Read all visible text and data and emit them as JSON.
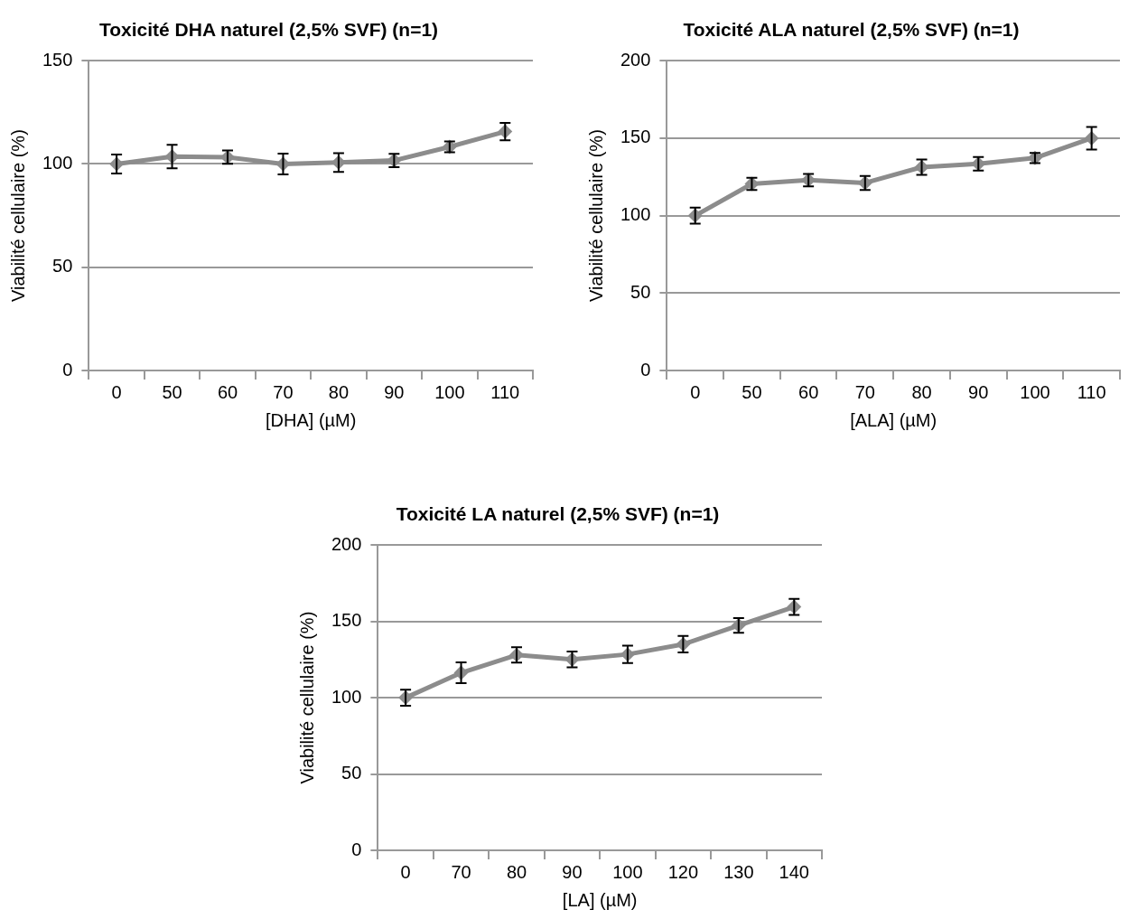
{
  "chart_data": [
    {
      "type": "line",
      "title": "Toxicité DHA naturel (2,5% SVF) (n=1)",
      "xlabel": "[DHA] (µM)",
      "ylabel": "Viabilité cellulaire (%)",
      "categories": [
        "0",
        "50",
        "60",
        "70",
        "80",
        "90",
        "100",
        "110"
      ],
      "color": "#8c8c8c",
      "marker": "diamond",
      "grid": "y",
      "values": [
        100,
        103.6,
        103.3,
        100,
        100.7,
        101.7,
        108.3,
        115.7
      ],
      "errors": [
        4.6,
        5.7,
        3.2,
        5,
        4.5,
        3.2,
        2.6,
        4.2
      ],
      "ylim": [
        0,
        150
      ],
      "yticks": [
        0,
        50,
        100,
        150
      ]
    },
    {
      "type": "line",
      "title": "Toxicité ALA naturel (2,5% SVF) (n=1)",
      "xlabel": "[ALA] (µM)",
      "ylabel": "Viabilité cellulaire (%)",
      "categories": [
        "0",
        "50",
        "60",
        "70",
        "80",
        "90",
        "100",
        "110"
      ],
      "color": "#8c8c8c",
      "marker": "diamond",
      "grid": "y",
      "values": [
        100,
        120.5,
        122.9,
        121.1,
        131.3,
        133.5,
        137.2,
        150
      ],
      "errors": [
        5.2,
        3.9,
        4,
        4.5,
        5,
        4.4,
        3.3,
        7.3
      ],
      "ylim": [
        0,
        200
      ],
      "yticks": [
        0,
        50,
        100,
        150,
        200
      ]
    },
    {
      "type": "line",
      "title": "Toxicité LA naturel (2,5% SVF) (n=1)",
      "xlabel": "[LA] (µM)",
      "ylabel": "Viabilité cellulaire (%)",
      "categories": [
        "0",
        "70",
        "80",
        "90",
        "100",
        "120",
        "130",
        "140"
      ],
      "color": "#8c8c8c",
      "marker": "diamond",
      "grid": "y",
      "values": [
        100,
        116.3,
        128,
        125.1,
        128.4,
        135,
        147.4,
        159.5
      ],
      "errors": [
        5.2,
        6.8,
        5,
        5.2,
        5.7,
        5.4,
        4.8,
        5.2
      ],
      "ylim": [
        0,
        200
      ],
      "yticks": [
        0,
        50,
        100,
        150,
        200
      ]
    }
  ]
}
